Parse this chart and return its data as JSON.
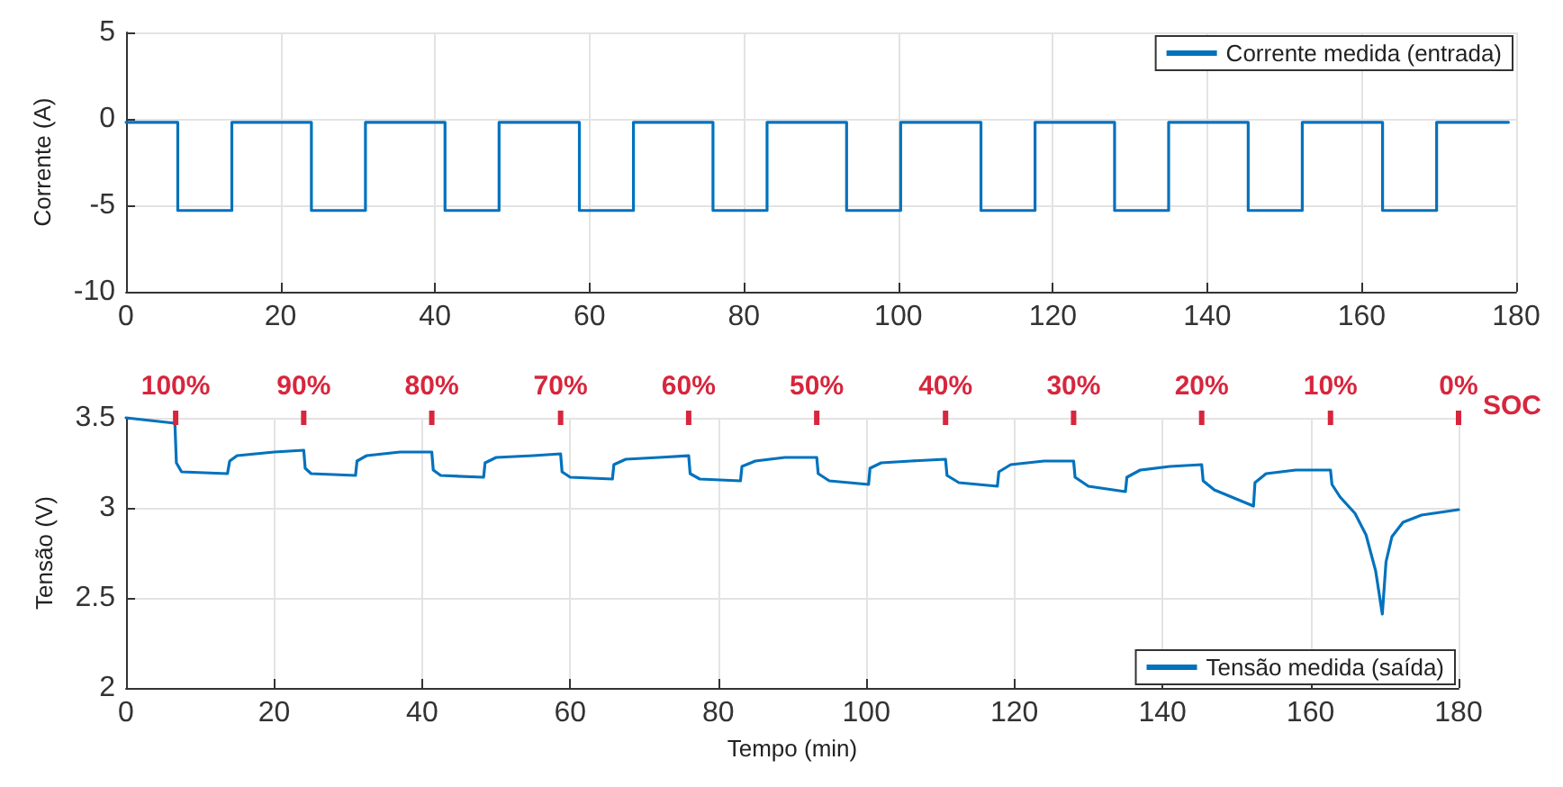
{
  "chart_data": [
    {
      "type": "line",
      "ylabel": "Corrente (A)",
      "xlim": [
        0,
        180
      ],
      "xticks": [
        0,
        20,
        40,
        60,
        80,
        100,
        120,
        140,
        160,
        180
      ],
      "ylim": [
        -10,
        5
      ],
      "yticks": [
        -10,
        -5,
        0,
        5
      ],
      "grid": true,
      "legend": "top right",
      "marker": "none",
      "line_style": "solid",
      "series": [
        {
          "name": "Corrente medida (entrada)",
          "color": "#0072bd",
          "x": [
            0,
            6.7,
            6.7,
            13.7,
            13.7,
            24.0,
            24.0,
            31.0,
            31.0,
            41.3,
            41.3,
            48.3,
            48.3,
            58.7,
            58.7,
            65.7,
            65.7,
            76.0,
            76.0,
            83.0,
            83.0,
            93.3,
            93.3,
            100.3,
            100.3,
            110.7,
            110.7,
            117.7,
            117.7,
            128.0,
            128.0,
            135.0,
            135.0,
            145.3,
            145.3,
            152.3,
            152.3,
            162.7,
            162.7,
            169.7,
            169.7,
            179
          ],
          "values": [
            -0.2,
            -0.2,
            -5.3,
            -5.3,
            -0.2,
            -0.2,
            -5.3,
            -5.3,
            -0.2,
            -0.2,
            -5.3,
            -5.3,
            -0.2,
            -0.2,
            -5.3,
            -5.3,
            -0.2,
            -0.2,
            -5.3,
            -5.3,
            -0.2,
            -0.2,
            -5.3,
            -5.3,
            -0.2,
            -0.2,
            -5.3,
            -5.3,
            -0.2,
            -0.2,
            -5.3,
            -5.3,
            -0.2,
            -0.2,
            -5.3,
            -5.3,
            -0.2,
            -0.2,
            -5.3,
            -5.3,
            -0.2,
            -0.2
          ]
        }
      ]
    },
    {
      "type": "line",
      "xlabel": "Tempo (min)",
      "ylabel": "Tensão (V)",
      "xlim": [
        0,
        180
      ],
      "xticks": [
        0,
        20,
        40,
        60,
        80,
        100,
        120,
        140,
        160,
        180
      ],
      "ylim": [
        2,
        3.5
      ],
      "yticks": [
        2,
        2.5,
        3,
        3.5
      ],
      "grid": true,
      "legend": "bottom right",
      "marker": "none",
      "line_style": "solid",
      "annotations": [
        {
          "text": "100%",
          "x": 6.7,
          "y": 3.5
        },
        {
          "text": "90%",
          "x": 24.0,
          "y": 3.5
        },
        {
          "text": "80%",
          "x": 41.3,
          "y": 3.5
        },
        {
          "text": "70%",
          "x": 58.7,
          "y": 3.5
        },
        {
          "text": "60%",
          "x": 76.0,
          "y": 3.5
        },
        {
          "text": "50%",
          "x": 93.3,
          "y": 3.5
        },
        {
          "text": "40%",
          "x": 110.7,
          "y": 3.5
        },
        {
          "text": "30%",
          "x": 128.0,
          "y": 3.5
        },
        {
          "text": "20%",
          "x": 145.3,
          "y": 3.5
        },
        {
          "text": "10%",
          "x": 162.7,
          "y": 3.5
        },
        {
          "text": "0%",
          "x": 180,
          "y": 3.5
        },
        "SOC"
      ],
      "series": [
        {
          "name": "Tensão medida (saída)",
          "color": "#0072bd",
          "x": [
            0,
            6.6,
            6.8,
            7.5,
            13.7,
            14.0,
            15,
            20,
            24.0,
            24.2,
            25,
            31,
            31.2,
            32.5,
            37,
            41.3,
            41.5,
            42.5,
            48.3,
            48.5,
            50,
            55,
            58.7,
            58.9,
            60,
            65.7,
            65.9,
            67.5,
            72,
            76.0,
            76.2,
            77.5,
            83,
            83.2,
            85,
            89,
            93.3,
            93.5,
            95,
            100.3,
            100.5,
            102,
            106,
            110.7,
            110.9,
            112.5,
            117.7,
            117.9,
            119.5,
            124,
            128,
            128.2,
            130,
            135,
            135.2,
            137,
            141,
            145.3,
            145.5,
            147,
            152.3,
            152.5,
            154,
            158,
            162.7,
            162.9,
            164,
            166,
            167.5,
            168.8,
            169.7,
            170.2,
            171,
            172.5,
            175,
            180
          ],
          "values": [
            3.5,
            3.47,
            3.25,
            3.2,
            3.19,
            3.26,
            3.29,
            3.31,
            3.32,
            3.22,
            3.19,
            3.18,
            3.26,
            3.29,
            3.31,
            3.31,
            3.21,
            3.18,
            3.17,
            3.25,
            3.28,
            3.29,
            3.3,
            3.2,
            3.17,
            3.16,
            3.24,
            3.27,
            3.28,
            3.29,
            3.19,
            3.16,
            3.15,
            3.23,
            3.26,
            3.28,
            3.28,
            3.19,
            3.15,
            3.13,
            3.22,
            3.25,
            3.26,
            3.27,
            3.18,
            3.14,
            3.12,
            3.2,
            3.24,
            3.26,
            3.26,
            3.17,
            3.12,
            3.09,
            3.17,
            3.21,
            3.23,
            3.24,
            3.15,
            3.1,
            3.01,
            3.14,
            3.19,
            3.21,
            3.21,
            3.13,
            3.06,
            2.97,
            2.85,
            2.65,
            2.41,
            2.7,
            2.84,
            2.92,
            2.96,
            2.99
          ]
        }
      ]
    }
  ]
}
